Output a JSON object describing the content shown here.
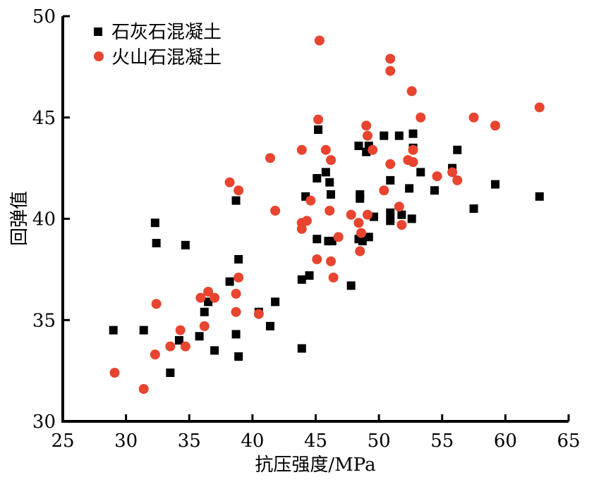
{
  "chart_data": {
    "type": "scatter",
    "title": "",
    "xlabel": "抗压强度/MPa",
    "ylabel": "回弹值",
    "xlim": [
      25,
      65
    ],
    "ylim": [
      30,
      50
    ],
    "xticks": [
      25,
      30,
      35,
      40,
      45,
      50,
      55,
      60,
      65
    ],
    "yticks": [
      30,
      35,
      40,
      45,
      50
    ],
    "grid": false,
    "legend_position": "top-left",
    "series": [
      {
        "name": "石灰石混凝土",
        "marker": "square",
        "color": "#000000",
        "points": [
          [
            29.0,
            34.5
          ],
          [
            31.4,
            34.5
          ],
          [
            32.3,
            39.8
          ],
          [
            32.4,
            38.8
          ],
          [
            33.5,
            32.4
          ],
          [
            34.2,
            34.0
          ],
          [
            34.7,
            38.7
          ],
          [
            35.8,
            34.2
          ],
          [
            36.2,
            35.4
          ],
          [
            36.5,
            35.9
          ],
          [
            37.0,
            33.5
          ],
          [
            38.2,
            36.9
          ],
          [
            38.7,
            34.3
          ],
          [
            38.7,
            40.9
          ],
          [
            38.9,
            38.0
          ],
          [
            38.9,
            33.2
          ],
          [
            40.5,
            35.4
          ],
          [
            41.4,
            34.7
          ],
          [
            41.8,
            35.9
          ],
          [
            43.9,
            37.0
          ],
          [
            44.5,
            37.2
          ],
          [
            43.9,
            33.6
          ],
          [
            44.2,
            41.1
          ],
          [
            45.1,
            39.0
          ],
          [
            45.2,
            44.4
          ],
          [
            45.1,
            42.0
          ],
          [
            45.8,
            42.3
          ],
          [
            46.1,
            41.8
          ],
          [
            46.2,
            41.2
          ],
          [
            46.0,
            38.9
          ],
          [
            46.3,
            38.9
          ],
          [
            47.8,
            36.7
          ],
          [
            48.4,
            43.6
          ],
          [
            48.5,
            41.2
          ],
          [
            48.5,
            41.0
          ],
          [
            48.4,
            39.0
          ],
          [
            48.7,
            38.9
          ],
          [
            49.0,
            43.3
          ],
          [
            49.2,
            43.6
          ],
          [
            49.2,
            39.1
          ],
          [
            49.6,
            40.1
          ],
          [
            50.4,
            44.1
          ],
          [
            50.9,
            41.9
          ],
          [
            50.9,
            40.3
          ],
          [
            50.9,
            39.9
          ],
          [
            51.6,
            44.1
          ],
          [
            51.8,
            40.2
          ],
          [
            52.4,
            41.5
          ],
          [
            52.6,
            40.0
          ],
          [
            52.7,
            44.2
          ],
          [
            52.7,
            43.5
          ],
          [
            53.3,
            42.3
          ],
          [
            54.4,
            41.4
          ],
          [
            55.8,
            42.5
          ],
          [
            56.2,
            43.4
          ],
          [
            57.5,
            40.5
          ],
          [
            59.2,
            41.7
          ],
          [
            62.7,
            41.1
          ]
        ]
      },
      {
        "name": "火山石混凝土",
        "marker": "circle",
        "color": "#e8442f",
        "points": [
          [
            29.1,
            32.4
          ],
          [
            31.4,
            31.6
          ],
          [
            32.3,
            33.3
          ],
          [
            32.4,
            35.8
          ],
          [
            33.5,
            33.7
          ],
          [
            34.3,
            34.5
          ],
          [
            34.7,
            33.7
          ],
          [
            35.9,
            36.1
          ],
          [
            36.2,
            34.7
          ],
          [
            36.5,
            36.4
          ],
          [
            37.0,
            36.1
          ],
          [
            38.7,
            35.4
          ],
          [
            38.7,
            36.3
          ],
          [
            38.9,
            37.1
          ],
          [
            38.2,
            41.8
          ],
          [
            38.9,
            41.4
          ],
          [
            40.5,
            35.3
          ],
          [
            41.4,
            43.0
          ],
          [
            41.8,
            40.4
          ],
          [
            43.9,
            43.4
          ],
          [
            43.9,
            39.8
          ],
          [
            44.3,
            39.9
          ],
          [
            43.9,
            39.5
          ],
          [
            44.6,
            40.9
          ],
          [
            45.1,
            38.0
          ],
          [
            45.2,
            44.9
          ],
          [
            45.3,
            48.8
          ],
          [
            45.8,
            43.4
          ],
          [
            46.2,
            42.9
          ],
          [
            46.1,
            40.4
          ],
          [
            46.2,
            37.9
          ],
          [
            46.4,
            37.1
          ],
          [
            46.8,
            39.1
          ],
          [
            47.8,
            40.2
          ],
          [
            48.4,
            39.8
          ],
          [
            48.6,
            39.3
          ],
          [
            48.5,
            38.4
          ],
          [
            49.0,
            44.6
          ],
          [
            49.1,
            44.1
          ],
          [
            49.5,
            43.4
          ],
          [
            49.1,
            40.2
          ],
          [
            50.4,
            41.4
          ],
          [
            50.9,
            47.9
          ],
          [
            50.9,
            47.3
          ],
          [
            50.9,
            42.7
          ],
          [
            51.6,
            40.6
          ],
          [
            51.8,
            39.7
          ],
          [
            52.3,
            42.9
          ],
          [
            52.7,
            42.8
          ],
          [
            52.7,
            43.4
          ],
          [
            52.6,
            46.3
          ],
          [
            53.3,
            45.0
          ],
          [
            54.6,
            42.1
          ],
          [
            55.8,
            42.3
          ],
          [
            56.2,
            41.9
          ],
          [
            57.5,
            45.0
          ],
          [
            59.2,
            44.6
          ],
          [
            62.7,
            45.5
          ]
        ]
      }
    ]
  }
}
